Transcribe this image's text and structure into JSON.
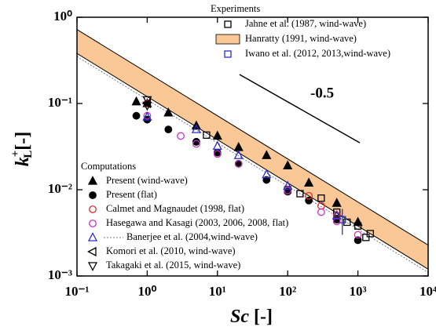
{
  "chart_data": {
    "type": "scatter",
    "x_label": {
      "symbol": "Sc",
      "unit": "[-]"
    },
    "y_label": {
      "symbol": "k",
      "subscript": "L",
      "superscript": "+",
      "unit": "[-]"
    },
    "log_x": true,
    "log_y": true,
    "xlim": [
      0.1,
      10000
    ],
    "ylim": [
      0.001,
      1
    ],
    "xticks": [
      {
        "value": 0.1,
        "label": "10⁻¹"
      },
      {
        "value": 1,
        "label": "10⁰"
      },
      {
        "value": 10,
        "label": "10¹"
      },
      {
        "value": 100,
        "label": "10²"
      },
      {
        "value": 1000,
        "label": "10³"
      },
      {
        "value": 10000,
        "label": "10⁴"
      }
    ],
    "yticks": [
      {
        "value": 0.001,
        "label": "10⁻³"
      },
      {
        "value": 0.01,
        "label": "10⁻²"
      },
      {
        "value": 0.1,
        "label": "10⁻¹"
      },
      {
        "value": 1,
        "label": "10⁰"
      }
    ],
    "legends": [
      {
        "title": "Experiments",
        "corner": "upper right"
      },
      {
        "title": "Computations",
        "corner": "lower left"
      }
    ],
    "annotation": {
      "label": "-0.5",
      "label_at": [
        210,
        0.128
      ],
      "line_x": [
        20.6,
        1064
      ],
      "line_y": [
        0.217,
        0.035
      ]
    },
    "series": [
      {
        "name": "Jahne et al. (1987, wind-wave)",
        "legend": 0,
        "marker": "square",
        "filled": false,
        "color": "#000000",
        "x": [
          7,
          100,
          150,
          300,
          500,
          700,
          1000,
          1300,
          1500
        ],
        "values": [
          0.043,
          0.01,
          0.009,
          0.008,
          0.0055,
          0.0042,
          0.0038,
          0.0028,
          0.0031
        ]
      },
      {
        "name": "Hanratty (1991, wind-wave)",
        "legend": 0,
        "marker": "band",
        "color": "#f9c896",
        "x": [
          0.1,
          10000
        ],
        "upper": [
          0.72,
          0.00228
        ],
        "lower": [
          0.38,
          0.0012
        ]
      },
      {
        "name": "Iwano et al. (2012, 2013,wind-wave)",
        "legend": 0,
        "marker": "square",
        "filled": false,
        "color": "#2b2bc8",
        "x": [
          600
        ],
        "values": [
          0.0045
        ],
        "errors": [
          0.0015
        ]
      },
      {
        "name": "Present (wind-wave)",
        "legend": 1,
        "marker": "triangle",
        "filled": true,
        "color": "#000000",
        "x": [
          0.7,
          1,
          2,
          5,
          10,
          20,
          50,
          100,
          200,
          500,
          1000
        ],
        "values": [
          0.105,
          0.1,
          0.078,
          0.055,
          0.042,
          0.031,
          0.025,
          0.019,
          0.012,
          0.007,
          0.0042
        ]
      },
      {
        "name": "Present (flat)",
        "legend": 1,
        "marker": "circle",
        "filled": true,
        "color": "#000000",
        "x": [
          0.7,
          1,
          2,
          5,
          10,
          20,
          50,
          100,
          200,
          500,
          1000
        ],
        "values": [
          0.072,
          0.065,
          0.05,
          0.036,
          0.027,
          0.02,
          0.013,
          0.0095,
          0.0075,
          0.0045,
          0.0026
        ]
      },
      {
        "name": "Calmet and Magnaudet (1998, flat)",
        "legend": 1,
        "marker": "circle",
        "filled": false,
        "color": "#d83030",
        "x": [
          1,
          200,
          300,
          500
        ],
        "values": [
          0.1,
          0.0085,
          0.0065,
          0.005
        ]
      },
      {
        "name": "Hasegawa and Kasagi (2003, 2006, 2008, flat)",
        "legend": 1,
        "marker": "circle",
        "filled": false,
        "color": "#c832c8",
        "x": [
          1,
          3,
          5,
          10,
          20,
          100,
          300,
          500,
          1000
        ],
        "values": [
          0.072,
          0.042,
          0.034,
          0.026,
          0.02,
          0.0098,
          0.0055,
          0.0043,
          0.003
        ]
      },
      {
        "name": "Banerjee et al. (2004,wind-wave)",
        "legend": 1,
        "marker": "triangle",
        "filled": false,
        "color": "#2b2bc8",
        "x": [
          1,
          5,
          10,
          20,
          50,
          100,
          500
        ],
        "values": [
          0.07,
          0.05,
          0.032,
          0.025,
          0.015,
          0.011,
          0.005
        ],
        "line_x": [
          0.1,
          10000
        ],
        "line_y": [
          0.35,
          0.0011
        ]
      },
      {
        "name": "Komori et al. (2010, wind-wave)",
        "legend": 1,
        "marker": "left",
        "filled": false,
        "color": "#000000",
        "x": [
          1
        ],
        "values": [
          0.1
        ]
      },
      {
        "name": "Takagaki et al. (2015, wind-wave)",
        "legend": 1,
        "marker": "down",
        "filled": false,
        "color": "#000000",
        "x": [
          1,
          1
        ],
        "values": [
          0.11,
          0.095
        ]
      }
    ]
  }
}
